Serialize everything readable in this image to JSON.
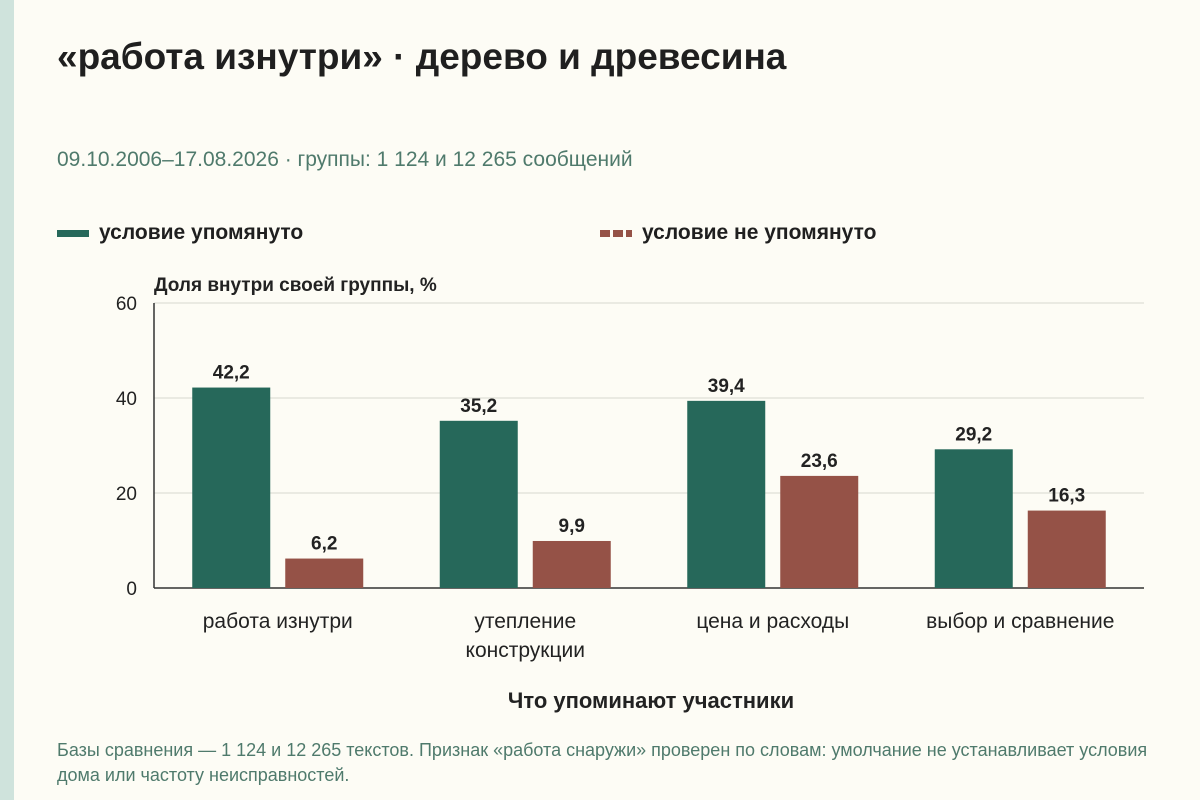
{
  "title": "«работа изнутри» · дерево и древесина",
  "subtitle": "09.10.2006–17.08.2026 · группы: 1 124 и 12 265 сообщений",
  "footnote": "Базы сравнения — 1 124 и 12 265 текстов. Признак «работа снаружи» проверен по словам: умолчание не устанавливает условия дома или частоту неисправностей.",
  "colors": {
    "mentioned": "#26685a",
    "not_mentioned": "#955247",
    "grid": "#d8d8d0",
    "axis": "#333333"
  },
  "chart_data": {
    "type": "bar",
    "categories": [
      "работа изнутри",
      "утепление конструкции",
      "цена и расходы",
      "выбор и сравнение"
    ],
    "category_lines": [
      [
        "работа изнутри"
      ],
      [
        "утепление",
        "конструкции"
      ],
      [
        "цена и расходы"
      ],
      [
        "выбор и сравнение"
      ]
    ],
    "series": [
      {
        "name": "условие упомянуто",
        "values": [
          42.2,
          35.2,
          39.4,
          29.2
        ],
        "labels": [
          "42,2",
          "35,2",
          "39,4",
          "29,2"
        ],
        "legend_style": "solid"
      },
      {
        "name": "условие не упомянуто",
        "values": [
          6.2,
          9.9,
          23.6,
          16.3
        ],
        "labels": [
          "6,2",
          "9,9",
          "23,6",
          "16,3"
        ],
        "legend_style": "dashed"
      }
    ],
    "ylabel": "Доля внутри своей группы, %",
    "xlabel": "Что упоминают участники",
    "ylim": [
      0,
      60
    ],
    "yticks": [
      0,
      20,
      40,
      60
    ],
    "grid": true,
    "legend_position": "top"
  }
}
